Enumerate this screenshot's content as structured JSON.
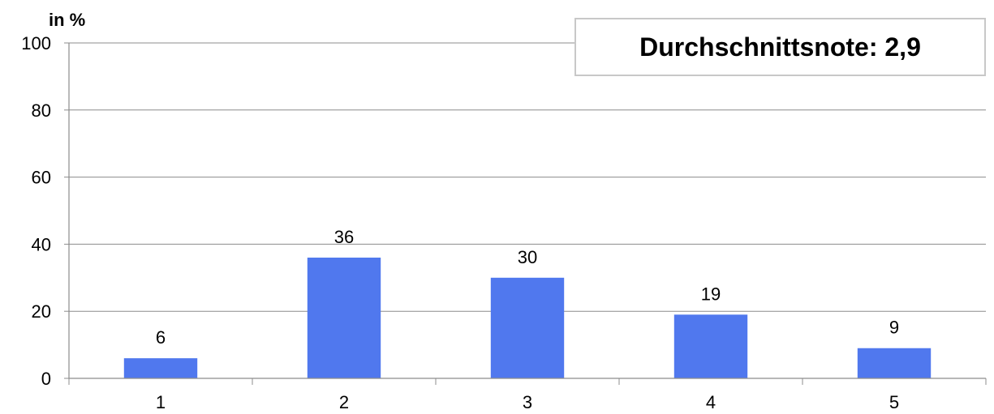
{
  "chart_data": {
    "type": "bar",
    "categories": [
      "1",
      "2",
      "3",
      "4",
      "5"
    ],
    "values": [
      6,
      36,
      30,
      19,
      9
    ],
    "data_labels": [
      "6",
      "36",
      "30",
      "19",
      "9"
    ],
    "y_unit_label": "in %",
    "ylim": [
      0,
      100
    ],
    "y_ticks": [
      "0",
      "20",
      "40",
      "60",
      "80",
      "100"
    ],
    "grid": true,
    "annotation": "Durchschnittsnote: 2,9",
    "bar_color": "#5078ee"
  }
}
